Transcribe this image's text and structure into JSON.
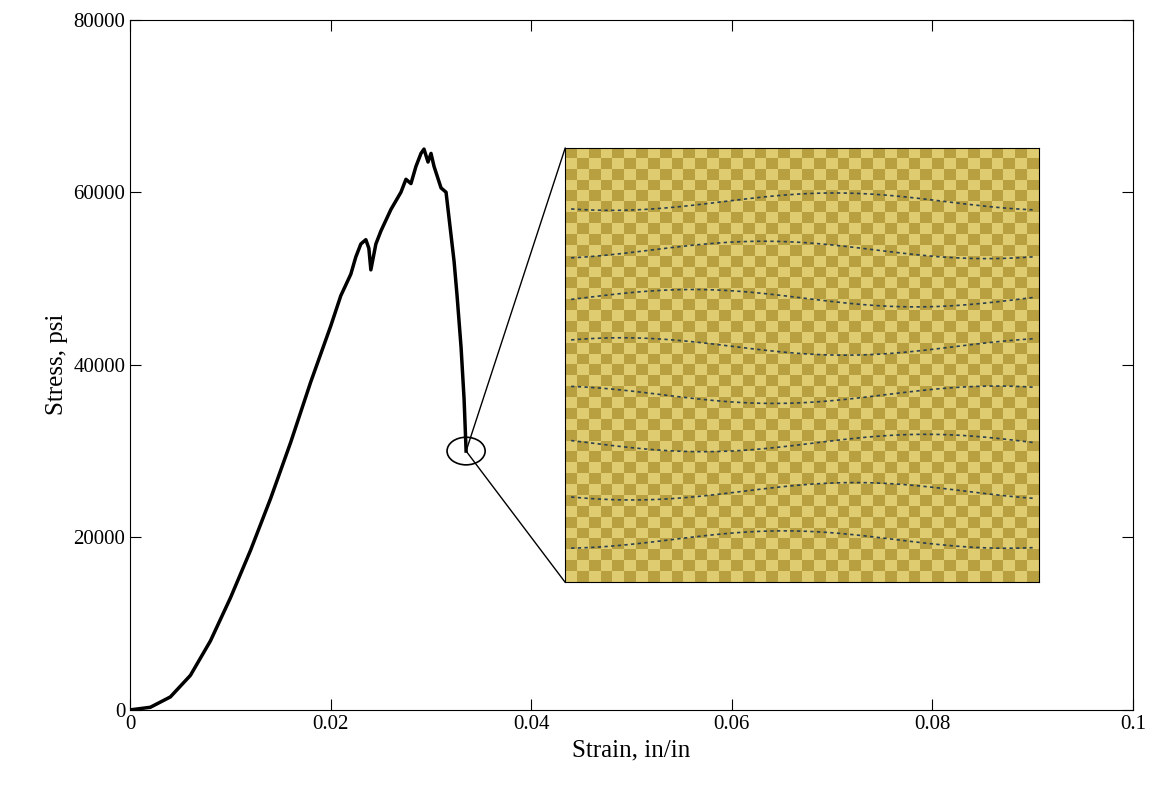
{
  "chart_data": {
    "type": "line",
    "x_label": "Strain, in/in",
    "y_label": "Stress, psi",
    "x": [
      0,
      0.002,
      0.004,
      0.006,
      0.008,
      0.01,
      0.012,
      0.014,
      0.016,
      0.018,
      0.02,
      0.021,
      0.022,
      0.0225,
      0.023,
      0.0235,
      0.0238,
      0.024,
      0.0245,
      0.025,
      0.026,
      0.027,
      0.0275,
      0.028,
      0.0285,
      0.029,
      0.0293,
      0.0297,
      0.03,
      0.0303,
      0.031,
      0.0315,
      0.032,
      0.0323,
      0.0326,
      0.033,
      0.0333,
      0.0335
    ],
    "values": [
      0,
      300,
      1500,
      4000,
      8000,
      13000,
      18500,
      24500,
      31000,
      38000,
      44500,
      48000,
      50500,
      52500,
      54000,
      54500,
      53500,
      51000,
      54000,
      55500,
      58000,
      60000,
      61500,
      61000,
      63000,
      64500,
      65000,
      63500,
      64500,
      63000,
      60500,
      60000,
      55000,
      52000,
      48000,
      42000,
      36000,
      30000
    ],
    "color": "#000000",
    "xlim": [
      0,
      0.1
    ],
    "ylim": [
      0,
      80000
    ],
    "xticks": [
      0,
      0.02,
      0.04,
      0.06,
      0.08,
      0.1
    ],
    "yticks": [
      0,
      20000,
      40000,
      60000,
      80000
    ],
    "grid": false
  }
}
